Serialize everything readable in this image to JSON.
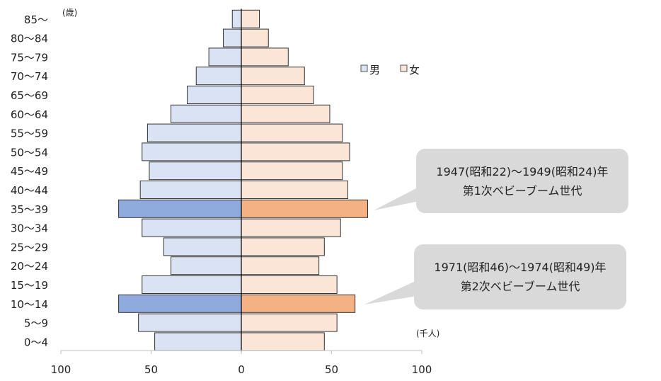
{
  "chart_data": {
    "type": "bar",
    "orientation": "horizontal-pyramid",
    "y_unit_label": "(歳)",
    "x_unit_label": "(千人)",
    "categories": [
      "0～4",
      "5～9",
      "10～14",
      "15～19",
      "20～24",
      "25～29",
      "30～34",
      "35～39",
      "40～44",
      "45～49",
      "50～54",
      "55～59",
      "60～64",
      "65～69",
      "70～74",
      "75～79",
      "80～84",
      "85～"
    ],
    "series": [
      {
        "name": "男",
        "values": [
          48,
          57,
          68,
          55,
          39,
          43,
          55,
          68,
          56,
          51,
          55,
          52,
          39,
          30,
          25,
          18,
          10,
          5
        ]
      },
      {
        "name": "女",
        "values": [
          46,
          53,
          63,
          53,
          43,
          46,
          55,
          70,
          59,
          56,
          60,
          56,
          49,
          40,
          35,
          26,
          15,
          10
        ]
      }
    ],
    "highlight_categories": [
      "10～14",
      "35～39"
    ],
    "xlim": [
      -100,
      100
    ],
    "x_ticks": [
      100,
      50,
      0,
      50,
      100
    ],
    "legend": {
      "placement": "top-right",
      "items": [
        "男",
        "女"
      ]
    },
    "colors": {
      "male": "#dae3f3",
      "male_highlight": "#8faadc",
      "female": "#fbe5d6",
      "female_highlight": "#f4b183",
      "bar_stroke": "#333333",
      "callout_fill": "#d9d9d9"
    },
    "annotations": [
      {
        "target": "35～39",
        "lines": [
          "1947(昭和22)～1949(昭和24)年",
          "第1次ベビーブーム世代"
        ]
      },
      {
        "target": "10～14",
        "lines": [
          "1971(昭和46)～1974(昭和49)年",
          "第2次ベビーブーム世代"
        ]
      }
    ]
  }
}
